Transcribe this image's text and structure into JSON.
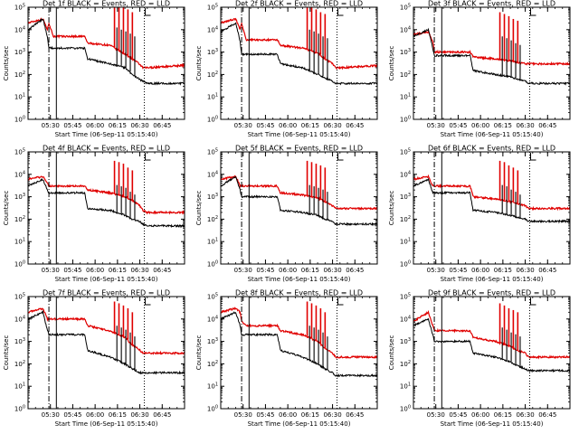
{
  "figure": {
    "background": "#ffffff",
    "colors": {
      "events": "#000000",
      "lld": "#e00000",
      "axes": "#000000"
    }
  },
  "chart_data": [
    {
      "type": "line",
      "detector": "1f",
      "title": "Det 1f BLACK = Events, RED = LLD",
      "xlabel": "Start Time (06-Sep-11 05:15:40)",
      "ylabel": "Counts/sec",
      "x_tick_labels": [
        "05:30",
        "05:45",
        "06:00",
        "06:15",
        "06:30",
        "06:45"
      ],
      "y_tick_labels": [
        "10^0",
        "10^1",
        "10^2",
        "10^3",
        "10^4",
        "10^5"
      ],
      "ylim": [
        1,
        100000
      ],
      "yscale": "log",
      "markers": {
        "dashdot_line": "05:29",
        "solid_line": "05:34",
        "dotted_line": "06:33"
      },
      "series": [
        {
          "values": [
            20000,
            30000,
            10000,
            20000,
            5000,
            5000,
            5000,
            2500,
            2000,
            800,
            500,
            280,
            200,
            200,
            220,
            260
          ]
        },
        {
          "values": [
            10000,
            30000,
            5000,
            1500,
            1500,
            1500,
            1500,
            500,
            300,
            200,
            100,
            60,
            50,
            40,
            40,
            40
          ]
        }
      ],
      "spikes": {
        "times": [
          "06:13",
          "06:16",
          "06:19",
          "06:22",
          "06:25"
        ],
        "peaks": [
          150000,
          120000,
          100000,
          80000,
          60000
        ]
      }
    },
    {
      "type": "line",
      "detector": "2f",
      "title": "Det 2f BLACK = Events, RED = LLD",
      "xlabel": "Start Time (06-Sep-11 05:15:40)",
      "ylabel": "Counts/sec",
      "x_tick_labels": [
        "05:30",
        "05:45",
        "06:00",
        "06:15",
        "06:30",
        "06:45"
      ],
      "y_tick_labels": [
        "10^0",
        "10^1",
        "10^2",
        "10^3",
        "10^4",
        "10^5"
      ],
      "ylim": [
        1,
        100000
      ],
      "yscale": "log",
      "markers": {
        "dashdot_line": "05:29",
        "solid_line": "05:34",
        "dotted_line": "06:33"
      },
      "series": [
        {
          "values": [
            20000,
            30000,
            10000,
            20000,
            3500,
            3500,
            3500,
            2000,
            1500,
            900,
            500,
            300,
            200,
            200,
            220,
            250
          ]
        },
        {
          "values": [
            8000,
            20000,
            3000,
            800,
            800,
            800,
            800,
            300,
            200,
            100,
            70,
            50,
            40,
            40,
            40,
            40
          ]
        }
      ],
      "spikes": {
        "times": [
          "06:13",
          "06:16",
          "06:19",
          "06:22",
          "06:25"
        ],
        "peaks": [
          120000,
          100000,
          80000,
          60000,
          50000
        ]
      }
    },
    {
      "type": "line",
      "detector": "3f",
      "title": "Det 3f BLACK = Events, RED = LLD",
      "xlabel": "Start Time (06-Sep-11 05:15:40)",
      "ylabel": "Counts/sec",
      "x_tick_labels": [
        "05:30",
        "05:45",
        "06:00",
        "06:15",
        "06:30",
        "06:45"
      ],
      "y_tick_labels": [
        "10^0",
        "10^1",
        "10^2",
        "10^3",
        "10^4",
        "10^5"
      ],
      "ylim": [
        1,
        100000
      ],
      "yscale": "log",
      "markers": {
        "dashdot_line": "05:29",
        "solid_line": "05:34",
        "dotted_line": "06:33"
      },
      "series": [
        {
          "values": [
            6000,
            8000,
            3000,
            1000,
            1000,
            1000,
            1000,
            600,
            500,
            400,
            350,
            300,
            300,
            300,
            300,
            300
          ]
        },
        {
          "values": [
            5000,
            10000,
            1500,
            700,
            700,
            700,
            700,
            150,
            100,
            80,
            60,
            50,
            40,
            40,
            40,
            40
          ]
        }
      ],
      "spikes": {
        "times": [
          "06:13",
          "06:16",
          "06:19",
          "06:22",
          "06:25"
        ],
        "peaks": [
          60000,
          50000,
          40000,
          30000,
          25000
        ]
      }
    },
    {
      "type": "line",
      "detector": "4f",
      "title": "Det 4f BLACK = Events, RED = LLD",
      "xlabel": "Start Time (06-Sep-11 05:15:40)",
      "ylabel": "Counts/sec",
      "x_tick_labels": [
        "05:30",
        "05:45",
        "06:00",
        "06:15",
        "06:30",
        "06:45"
      ],
      "y_tick_labels": [
        "10^0",
        "10^1",
        "10^2",
        "10^3",
        "10^4",
        "10^5"
      ],
      "ylim": [
        1,
        100000
      ],
      "yscale": "log",
      "markers": {
        "dashdot_line": "05:29",
        "solid_line": "05:34",
        "dotted_line": "06:33"
      },
      "series": [
        {
          "values": [
            6000,
            8000,
            4000,
            3000,
            3000,
            3000,
            3000,
            2000,
            1500,
            1000,
            700,
            400,
            250,
            200,
            200,
            200
          ]
        },
        {
          "values": [
            3000,
            6000,
            2000,
            1500,
            1500,
            1500,
            1500,
            300,
            250,
            150,
            100,
            80,
            60,
            50,
            50,
            50
          ]
        }
      ],
      "spikes": {
        "times": [
          "06:13",
          "06:16",
          "06:19",
          "06:22",
          "06:25"
        ],
        "peaks": [
          40000,
          35000,
          30000,
          20000,
          15000
        ]
      }
    },
    {
      "type": "line",
      "detector": "5f",
      "title": "Det 5f BLACK = Events, RED = LLD",
      "xlabel": "Start Time (06-Sep-11 05:15:40)",
      "ylabel": "Counts/sec",
      "x_tick_labels": [
        "05:30",
        "05:45",
        "06:00",
        "06:15",
        "06:30",
        "06:45"
      ],
      "y_tick_labels": [
        "10^0",
        "10^1",
        "10^2",
        "10^3",
        "10^4",
        "10^5"
      ],
      "ylim": [
        1,
        100000
      ],
      "yscale": "log",
      "markers": {
        "dashdot_line": "05:29",
        "solid_line": "05:34",
        "dotted_line": "06:33"
      },
      "series": [
        {
          "values": [
            6000,
            8000,
            3000,
            3000,
            3000,
            3000,
            3000,
            1500,
            1200,
            900,
            600,
            400,
            300,
            300,
            300,
            300
          ]
        },
        {
          "values": [
            3000,
            8000,
            2000,
            1000,
            1000,
            1000,
            1000,
            250,
            200,
            150,
            100,
            80,
            60,
            60,
            60,
            60
          ]
        }
      ],
      "spikes": {
        "times": [
          "06:13",
          "06:16",
          "06:19",
          "06:22",
          "06:25"
        ],
        "peaks": [
          40000,
          35000,
          30000,
          25000,
          20000
        ]
      }
    },
    {
      "type": "line",
      "detector": "6f",
      "title": "Det 6f BLACK = Events, RED = LLD",
      "xlabel": "Start Time (06-Sep-11 05:15:40)",
      "ylabel": "Counts/sec",
      "x_tick_labels": [
        "05:30",
        "05:45",
        "06:00",
        "06:15",
        "06:30",
        "06:45"
      ],
      "y_tick_labels": [
        "10^0",
        "10^1",
        "10^2",
        "10^3",
        "10^4",
        "10^5"
      ],
      "ylim": [
        1,
        100000
      ],
      "yscale": "log",
      "markers": {
        "dashdot_line": "05:29",
        "solid_line": "05:34",
        "dotted_line": "06:33"
      },
      "series": [
        {
          "values": [
            6000,
            8000,
            3000,
            3000,
            3000,
            3000,
            3000,
            1000,
            800,
            600,
            500,
            400,
            300,
            300,
            300,
            300
          ]
        },
        {
          "values": [
            3000,
            6000,
            1500,
            1500,
            1500,
            1500,
            1500,
            250,
            200,
            150,
            120,
            100,
            80,
            80,
            80,
            80
          ]
        }
      ],
      "spikes": {
        "times": [
          "06:13",
          "06:16",
          "06:19",
          "06:22",
          "06:25"
        ],
        "peaks": [
          40000,
          35000,
          25000,
          20000,
          15000
        ]
      }
    },
    {
      "type": "line",
      "detector": "7f",
      "title": "Det 7f BLACK = Events, RED = LLD",
      "xlabel": "Start Time (06-Sep-11 05:15:40)",
      "ylabel": "Counts/sec",
      "x_tick_labels": [
        "05:30",
        "05:45",
        "06:00",
        "06:15",
        "06:30",
        "06:45"
      ],
      "y_tick_labels": [
        "10^0",
        "10^1",
        "10^2",
        "10^3",
        "10^4",
        "10^5"
      ],
      "ylim": [
        1,
        100000
      ],
      "yscale": "log",
      "markers": {
        "dashdot_line": "05:29",
        "solid_line": "05:34",
        "dotted_line": "06:33"
      },
      "series": [
        {
          "values": [
            20000,
            30000,
            10000,
            10000,
            10000,
            10000,
            10000,
            5000,
            3000,
            1500,
            700,
            400,
            300,
            300,
            300,
            300
          ]
        },
        {
          "values": [
            10000,
            20000,
            3000,
            2000,
            2000,
            2000,
            2000,
            400,
            200,
            100,
            60,
            40,
            40,
            40,
            40,
            40
          ]
        }
      ],
      "spikes": {
        "times": [
          "06:13",
          "06:16",
          "06:19",
          "06:22",
          "06:25"
        ],
        "peaks": [
          60000,
          50000,
          40000,
          30000,
          20000
        ]
      }
    },
    {
      "type": "line",
      "detector": "8f",
      "title": "Det 8f BLACK = Events, RED = LLD",
      "xlabel": "Start Time (06-Sep-11 05:15:40)",
      "ylabel": "Counts/sec",
      "x_tick_labels": [
        "05:30",
        "05:45",
        "06:00",
        "06:15",
        "06:30",
        "06:45"
      ],
      "y_tick_labels": [
        "10^0",
        "10^1",
        "10^2",
        "10^3",
        "10^4",
        "10^5"
      ],
      "ylim": [
        1,
        100000
      ],
      "yscale": "log",
      "markers": {
        "dashdot_line": "05:29",
        "solid_line": "05:34",
        "dotted_line": "06:33"
      },
      "series": [
        {
          "values": [
            20000,
            30000,
            20000,
            8000,
            5000,
            5000,
            5000,
            3000,
            2000,
            1000,
            500,
            300,
            200,
            200,
            200,
            200
          ]
        },
        {
          "values": [
            10000,
            20000,
            5000,
            2000,
            2000,
            2000,
            2000,
            400,
            200,
            100,
            60,
            40,
            30,
            30,
            30,
            30
          ]
        }
      ],
      "spikes": {
        "times": [
          "06:13",
          "06:16",
          "06:19",
          "06:22",
          "06:25"
        ],
        "peaks": [
          60000,
          50000,
          40000,
          30000,
          20000
        ]
      }
    },
    {
      "type": "line",
      "detector": "9f",
      "title": "Det 9f BLACK = Events, RED = LLD",
      "xlabel": "Start Time (06-Sep-11 05:15:40)",
      "ylabel": "Counts/sec",
      "x_tick_labels": [
        "05:30",
        "05:45",
        "06:00",
        "06:15",
        "06:30",
        "06:45"
      ],
      "y_tick_labels": [
        "10^0",
        "10^1",
        "10^2",
        "10^3",
        "10^4",
        "10^5"
      ],
      "ylim": [
        1,
        100000
      ],
      "yscale": "log",
      "markers": {
        "dashdot_line": "05:29",
        "solid_line": "05:34",
        "dotted_line": "06:33"
      },
      "series": [
        {
          "values": [
            8000,
            20000,
            5000,
            3000,
            3000,
            3000,
            3000,
            1500,
            1000,
            600,
            400,
            300,
            200,
            200,
            200,
            200
          ]
        },
        {
          "values": [
            5000,
            10000,
            2000,
            1000,
            1000,
            1000,
            1000,
            300,
            200,
            120,
            80,
            60,
            50,
            50,
            50,
            50
          ]
        }
      ],
      "spikes": {
        "times": [
          "06:13",
          "06:16",
          "06:19",
          "06:22",
          "06:25"
        ],
        "peaks": [
          50000,
          40000,
          30000,
          25000,
          20000
        ]
      }
    }
  ]
}
